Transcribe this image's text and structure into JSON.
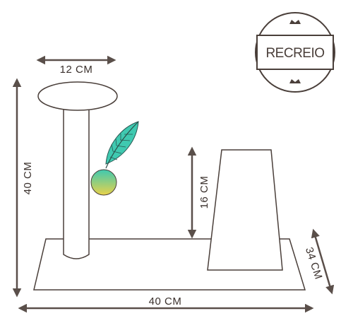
{
  "brand": {
    "name": "RECREIO"
  },
  "dimensions": {
    "post_width": "12 CM",
    "total_height": "40 CM",
    "box_height": "16 CM",
    "base_width": "40 CM",
    "base_depth": "34 CM"
  },
  "colors": {
    "outline": "#4a3f3a",
    "arrow": "#5a4f4a",
    "feather": "#3fc9b0",
    "ball_top": "#3fc9b0",
    "ball_bottom": "#e8d24a"
  }
}
